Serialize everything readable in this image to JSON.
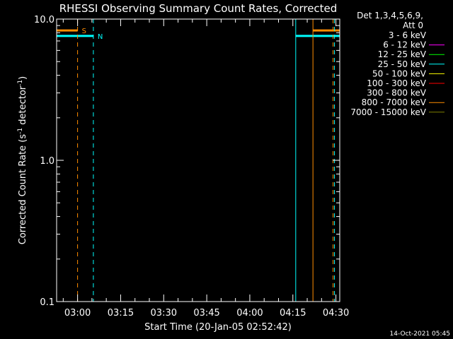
{
  "chart_data": {
    "type": "line",
    "title": "RHESSI Observing Summary Count Rates, Corrected",
    "xlabel": "Start Time (20-Jan-05 02:52:42)",
    "ylabel": "Corrected Count Rate (s",
    "ylabel_sup": "-1",
    "ylabel_mid": " detector",
    "ylabel_sup2": "-1",
    "ylabel_end": ")",
    "y_scale": "log",
    "ylim": [
      0.1,
      10.0
    ],
    "xlim": [
      "02:52:42",
      "04:31:20"
    ],
    "x_ticks": [
      "03:00",
      "03:15",
      "03:30",
      "03:45",
      "04:00",
      "04:15",
      "04:30"
    ],
    "y_ticks": [
      "0.1",
      "1.0",
      "10.0"
    ],
    "grid": false,
    "legend_header": [
      "Det 1,3,4,5,6,9,",
      "Att 0"
    ],
    "legend_position": "right",
    "series": [
      {
        "name": "3 - 6 keV",
        "color": "#000000"
      },
      {
        "name": "6 - 12 keV",
        "color": "#ff00ff"
      },
      {
        "name": "12 - 25 keV",
        "color": "#00ff00"
      },
      {
        "name": "25 - 50 keV",
        "color": "#00ffff"
      },
      {
        "name": "50 - 100 keV",
        "color": "#ffff00"
      },
      {
        "name": "100 - 300 keV",
        "color": "#ff0000"
      },
      {
        "name": "300 - 800 keV",
        "color": "#000000"
      },
      {
        "name": "800 - 7000 keV",
        "color": "#ff8c00"
      },
      {
        "name": "7000 - 15000 keV",
        "color": "#808000"
      }
    ],
    "flag_bars": [
      {
        "label": "S",
        "color": "#ff8c00",
        "y": 8.3,
        "segments": [
          [
            "02:52:42",
            "03:00:00"
          ],
          [
            "04:22:00",
            "04:31:20"
          ]
        ]
      },
      {
        "label": "N",
        "color": "#00ffff",
        "y": 7.6,
        "segments": [
          [
            "02:52:42",
            "03:05:30"
          ],
          [
            "04:16:00",
            "04:31:20"
          ]
        ]
      }
    ],
    "vlines": [
      {
        "t": "03:00:00",
        "color": "#ff8c00",
        "style": "dashed"
      },
      {
        "t": "03:05:30",
        "color": "#00ffff",
        "style": "dashed"
      },
      {
        "t": "04:16:00",
        "color": "#00ffff",
        "style": "solid"
      },
      {
        "t": "04:22:00",
        "color": "#ff8c00",
        "style": "solid"
      },
      {
        "t": "04:29:00",
        "color": "#ff8c00",
        "style": "dashed"
      },
      {
        "t": "04:29:30",
        "color": "#00ffff",
        "style": "dashed"
      }
    ]
  },
  "footer": {
    "date_stamp": "14-Oct-2021 05:45"
  }
}
